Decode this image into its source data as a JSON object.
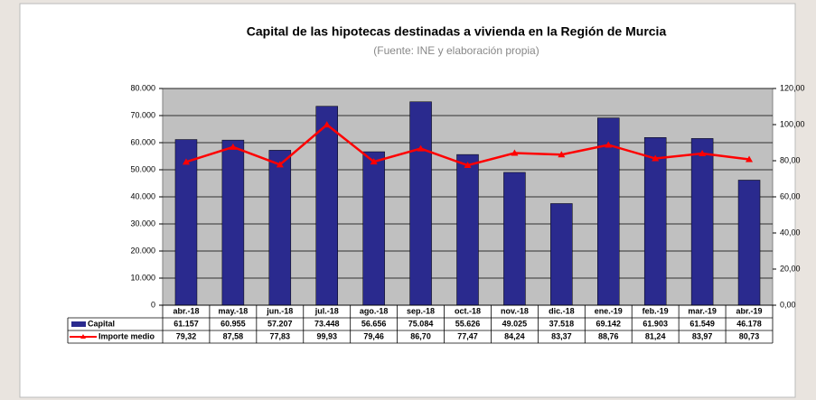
{
  "chart_data": {
    "type": "bar",
    "title": "Capital de las hipotecas destinadas a vivienda en la Región de Murcia",
    "subtitle": "(Fuente: INE y elaboración propia)",
    "categories": [
      "abr.-18",
      "may.-18",
      "jun.-18",
      "jul.-18",
      "ago.-18",
      "sep.-18",
      "oct.-18",
      "nov.-18",
      "dic.-18",
      "ene.-19",
      "feb.-19",
      "mar.-19",
      "abr.-19"
    ],
    "series": [
      {
        "name": "Capital",
        "color": "#2a2a8e",
        "values": [
          61157,
          60955,
          57207,
          73448,
          56656,
          75084,
          55626,
          49025,
          37518,
          69142,
          61903,
          61549,
          46178
        ],
        "value_labels": [
          "61.157",
          "60.955",
          "57.207",
          "73.448",
          "56.656",
          "75.084",
          "55.626",
          "49.025",
          "37.518",
          "69.142",
          "61.903",
          "61.549",
          "46.178"
        ]
      },
      {
        "name": "Importe medio",
        "color": "#ff0000",
        "type": "line",
        "axis": "y2",
        "values": [
          79.32,
          87.58,
          77.83,
          99.93,
          79.46,
          86.7,
          77.47,
          84.24,
          83.37,
          88.76,
          81.24,
          83.97,
          80.73
        ],
        "value_labels": [
          "79,32",
          "87,58",
          "77,83",
          "99,93",
          "79,46",
          "86,70",
          "77,47",
          "84,24",
          "83,37",
          "88,76",
          "81,24",
          "83,97",
          "80,73"
        ]
      }
    ],
    "ylim": [
      0,
      80000
    ],
    "yticks": [
      0,
      {
        "value": 10000,
        "label": "10.000"
      },
      {
        "value": 20000,
        "label": "20.000"
      },
      {
        "value": 30000,
        "label": "30.000"
      },
      {
        "value": 40000,
        "label": "40.000"
      },
      {
        "value": 50000,
        "label": "50.000"
      },
      {
        "value": 60000,
        "label": "60.000"
      },
      {
        "value": 70000,
        "label": "70.000"
      },
      {
        "value": 80000,
        "label": "80.000"
      }
    ],
    "y2lim": [
      0,
      120
    ],
    "y2ticks": [
      {
        "value": 0,
        "label": "0,00"
      },
      {
        "value": 20,
        "label": "20,00"
      },
      {
        "value": 40,
        "label": "40,00"
      },
      {
        "value": 60,
        "label": "60,00"
      },
      {
        "value": 80,
        "label": "80,00"
      },
      {
        "value": 100,
        "label": "100,00"
      },
      {
        "value": 120,
        "label": "120,00"
      }
    ],
    "grid": true,
    "plot_background": "#c0c0c0"
  }
}
